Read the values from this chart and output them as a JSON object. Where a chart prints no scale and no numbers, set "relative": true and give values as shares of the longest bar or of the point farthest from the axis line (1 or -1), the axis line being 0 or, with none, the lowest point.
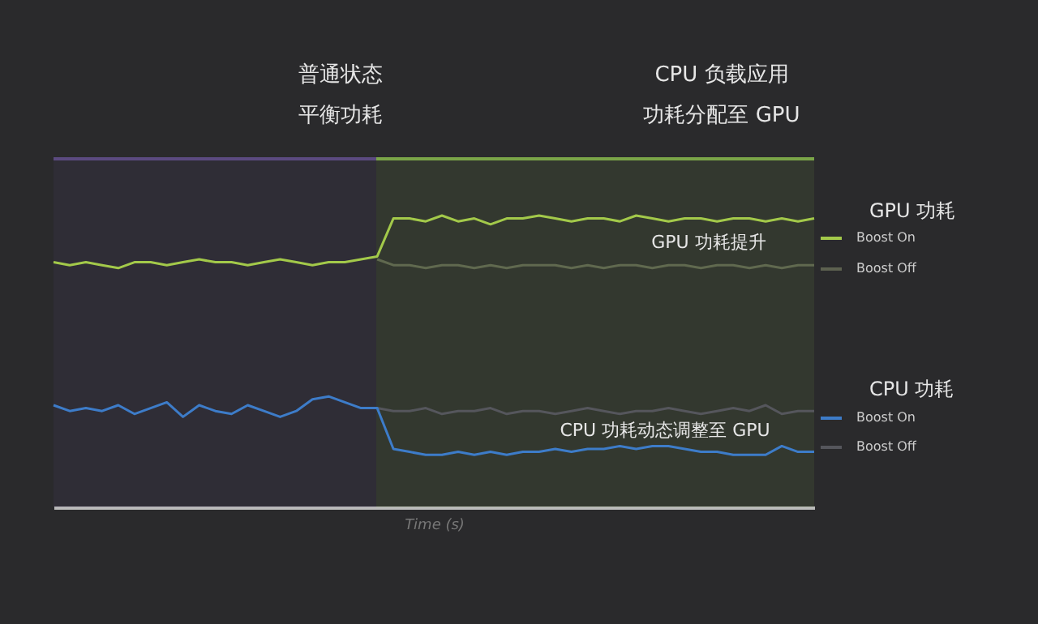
{
  "chart_data": {
    "type": "line",
    "relative": true,
    "xlabel": "Time (s)",
    "categories": [
      null,
      null,
      null,
      null,
      null,
      null,
      null,
      null,
      null,
      null,
      null,
      null,
      null,
      null,
      null,
      null,
      null,
      null,
      null,
      null,
      null,
      null,
      null,
      null,
      null,
      null,
      null,
      null,
      null,
      null,
      null,
      null,
      null,
      null,
      null,
      null,
      null,
      null,
      null,
      null,
      null,
      null,
      null,
      null,
      null,
      null,
      null,
      null
    ],
    "series": [
      {
        "name": "Boost On",
        "color": "#a3c94a",
        "values": [
          0.84,
          0.83,
          0.84,
          0.83,
          0.82,
          0.84,
          0.84,
          0.83,
          0.84,
          0.85,
          0.84,
          0.84,
          0.83,
          0.84,
          0.85,
          0.84,
          0.83,
          0.84,
          0.84,
          0.85,
          0.86,
          0.99,
          0.99,
          0.98,
          1.0,
          0.98,
          0.99,
          0.97,
          0.99,
          0.99,
          1.0,
          0.99,
          0.98,
          0.99,
          0.99,
          0.98,
          1.0,
          0.99,
          0.98,
          0.99,
          0.99,
          0.98,
          0.99,
          0.99,
          0.98,
          0.99,
          0.98,
          0.99
        ]
      },
      {
        "name": "Boost Off",
        "color": "#5d6150",
        "values": [
          null,
          null,
          null,
          null,
          null,
          null,
          null,
          null,
          null,
          null,
          null,
          null,
          null,
          null,
          null,
          null,
          null,
          null,
          null,
          null,
          0.85,
          0.83,
          0.83,
          0.82,
          0.83,
          0.83,
          0.82,
          0.83,
          0.82,
          0.83,
          0.83,
          0.83,
          0.82,
          0.83,
          0.82,
          0.83,
          0.83,
          0.82,
          0.83,
          0.83,
          0.82,
          0.83,
          0.83,
          0.82,
          0.83,
          0.82,
          0.83,
          0.83
        ]
      },
      {
        "name": "Boost On",
        "color": "#3d7cc9",
        "values": [
          0.35,
          0.33,
          0.34,
          0.33,
          0.35,
          0.32,
          0.34,
          0.36,
          0.31,
          0.35,
          0.33,
          0.32,
          0.35,
          0.33,
          0.31,
          0.33,
          0.37,
          0.38,
          0.36,
          0.34,
          0.34,
          0.2,
          0.19,
          0.18,
          0.18,
          0.19,
          0.18,
          0.19,
          0.18,
          0.19,
          0.19,
          0.2,
          0.19,
          0.2,
          0.2,
          0.21,
          0.2,
          0.21,
          0.21,
          0.2,
          0.19,
          0.19,
          0.18,
          0.18,
          0.18,
          0.21,
          0.19,
          0.19
        ]
      },
      {
        "name": "Boost Off",
        "color": "#55565c",
        "values": [
          null,
          null,
          null,
          null,
          null,
          null,
          null,
          null,
          null,
          null,
          null,
          null,
          null,
          null,
          null,
          null,
          null,
          null,
          null,
          null,
          0.34,
          0.33,
          0.33,
          0.34,
          0.32,
          0.33,
          0.33,
          0.34,
          0.32,
          0.33,
          0.33,
          0.32,
          0.33,
          0.34,
          0.33,
          0.32,
          0.33,
          0.33,
          0.34,
          0.33,
          0.32,
          0.33,
          0.34,
          0.33,
          0.35,
          0.32,
          0.33,
          0.33
        ]
      }
    ],
    "annotations": [
      "普通状态",
      "平衡功耗",
      "CPU 负载应用",
      "功耗分配至 GPU",
      "GPU 功耗提升",
      "CPU 功耗动态调整至 GPU",
      "GPU 功耗",
      "CPU 功耗"
    ],
    "legend": "right"
  }
}
